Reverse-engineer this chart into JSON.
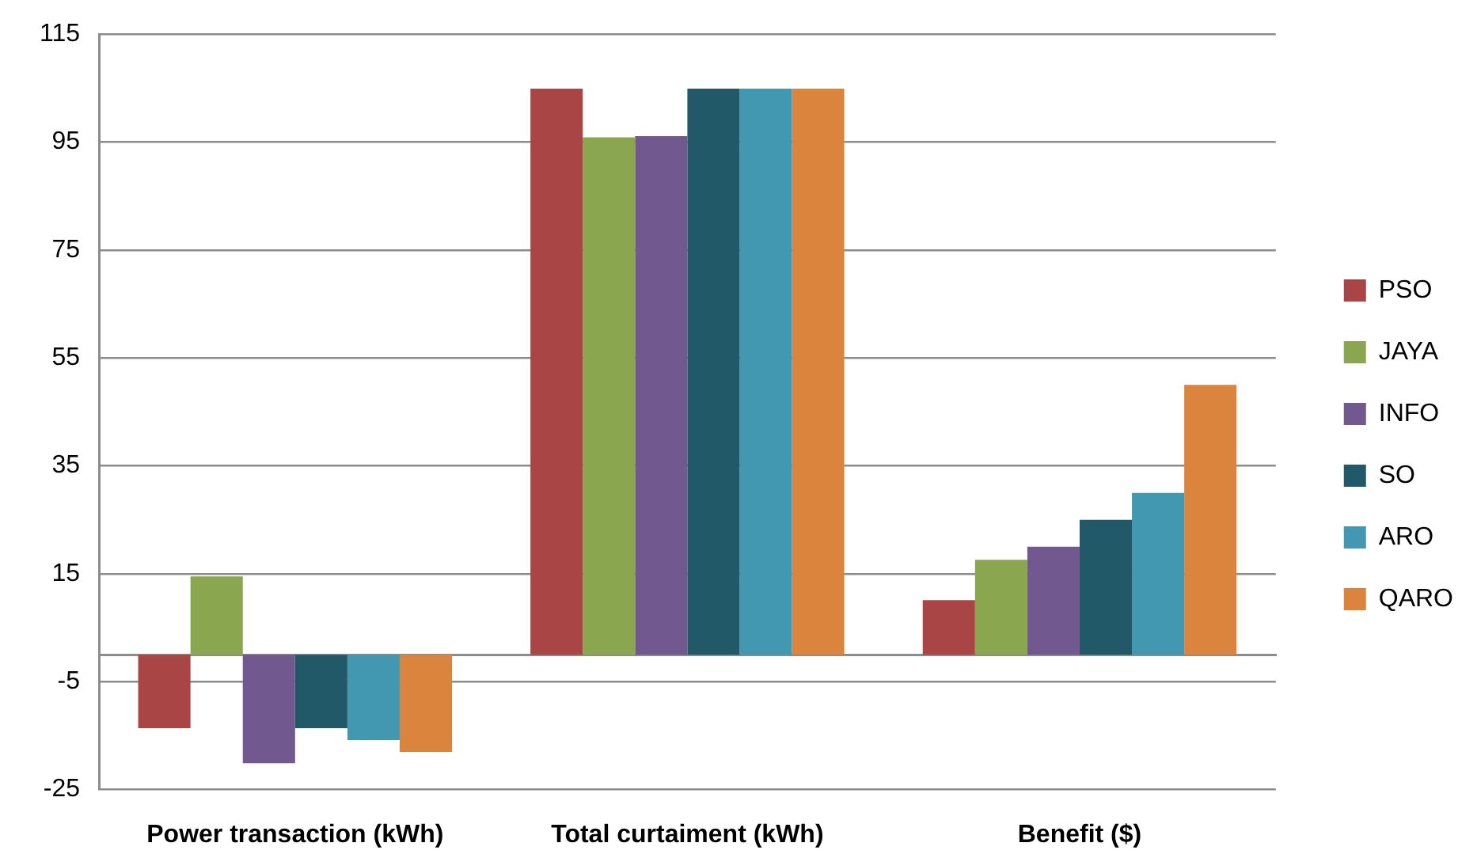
{
  "chart_data": {
    "type": "bar",
    "categories": [
      "Power transaction (kWh)",
      "Total curtaiment (kWh)",
      "Benefit ($)"
    ],
    "series": [
      {
        "name": "PSO",
        "color": "#a94545",
        "values": [
          -13.6,
          104.9,
          10.1
        ]
      },
      {
        "name": "JAYA",
        "color": "#8aa64e",
        "values": [
          14.5,
          95.9,
          17.6
        ]
      },
      {
        "name": "INFO",
        "color": "#71588f",
        "values": [
          -20.1,
          96.1,
          20
        ]
      },
      {
        "name": "SO",
        "color": "#215968",
        "values": [
          -13.6,
          104.9,
          25
        ]
      },
      {
        "name": "ARO",
        "color": "#4298b0",
        "values": [
          -15.8,
          104.9,
          30
        ]
      },
      {
        "name": "QARO",
        "color": "#db843d",
        "values": [
          -18,
          104.9,
          50
        ]
      }
    ],
    "ylim": [
      -25,
      115
    ],
    "yticks": [
      -25,
      -5,
      15,
      35,
      55,
      75,
      95,
      115
    ],
    "grid": "y",
    "legend": "right"
  }
}
